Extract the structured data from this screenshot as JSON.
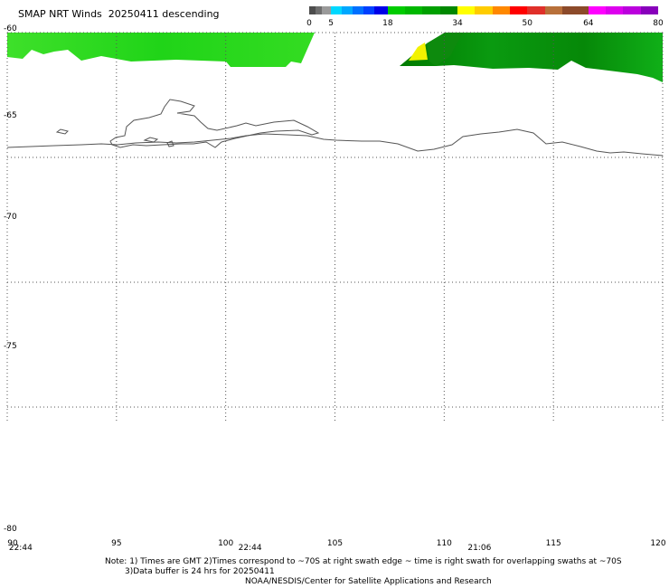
{
  "title": "SMAP NRT Winds  20250411 descending",
  "colorbar": {
    "segments": [
      {
        "from": 0,
        "to": 1.5,
        "color": "#4d4d4d"
      },
      {
        "from": 1.5,
        "to": 3,
        "color": "#6e6e6e"
      },
      {
        "from": 3,
        "to": 5,
        "color": "#9a9a9a"
      },
      {
        "from": 5,
        "to": 7.5,
        "color": "#00d8ff"
      },
      {
        "from": 7.5,
        "to": 10,
        "color": "#00a8ff"
      },
      {
        "from": 10,
        "to": 12.5,
        "color": "#0070ff"
      },
      {
        "from": 12.5,
        "to": 15,
        "color": "#0040ff"
      },
      {
        "from": 15,
        "to": 18,
        "color": "#0000e8"
      },
      {
        "from": 18,
        "to": 22,
        "color": "#00cc00"
      },
      {
        "from": 22,
        "to": 26,
        "color": "#00b800"
      },
      {
        "from": 26,
        "to": 30,
        "color": "#00a000"
      },
      {
        "from": 30,
        "to": 34,
        "color": "#008800"
      },
      {
        "from": 34,
        "to": 38,
        "color": "#ffff00"
      },
      {
        "from": 38,
        "to": 42,
        "color": "#ffcc00"
      },
      {
        "from": 42,
        "to": 46,
        "color": "#ff8800"
      },
      {
        "from": 46,
        "to": 50,
        "color": "#ff0000"
      },
      {
        "from": 50,
        "to": 54,
        "color": "#e0302a"
      },
      {
        "from": 54,
        "to": 58,
        "color": "#b8703a"
      },
      {
        "from": 58,
        "to": 64,
        "color": "#8c4a2a"
      },
      {
        "from": 64,
        "to": 68,
        "color": "#ff00ff"
      },
      {
        "from": 68,
        "to": 72,
        "color": "#dd00ee"
      },
      {
        "from": 72,
        "to": 76,
        "color": "#bb00dd"
      },
      {
        "from": 76,
        "to": 80,
        "color": "#8800bb"
      }
    ],
    "labels": [
      "0",
      "5",
      "18",
      "34",
      "50",
      "64",
      "80"
    ],
    "values": [
      0,
      5,
      18,
      34,
      50,
      64,
      80
    ]
  },
  "map": {
    "lat_labels": [
      "-60",
      "-65",
      "-70",
      "-75",
      "-80"
    ],
    "lat_values": [
      -60,
      -65,
      -70,
      -75,
      -80
    ],
    "lon_labels": [
      "90",
      "95",
      "100",
      "105",
      "110",
      "115",
      "120"
    ],
    "lon_values": [
      90,
      95,
      100,
      105,
      110,
      115,
      120
    ],
    "times": [
      {
        "label": "22:44",
        "lon": 90.2
      },
      {
        "label": "22:44",
        "lon": 100.7
      },
      {
        "label": "21:06",
        "lon": 111.2
      }
    ]
  },
  "notes": {
    "line1": "Note: 1) Times are GMT 2)Times correspond to ~70S at right swath edge ~ time is right swath for overlapping swaths at ~70S",
    "line2": "3)Data buffer is 24 hrs for 20250411",
    "line3": "NOAA/NESDIS/Center for Satellite Applications and Research"
  }
}
